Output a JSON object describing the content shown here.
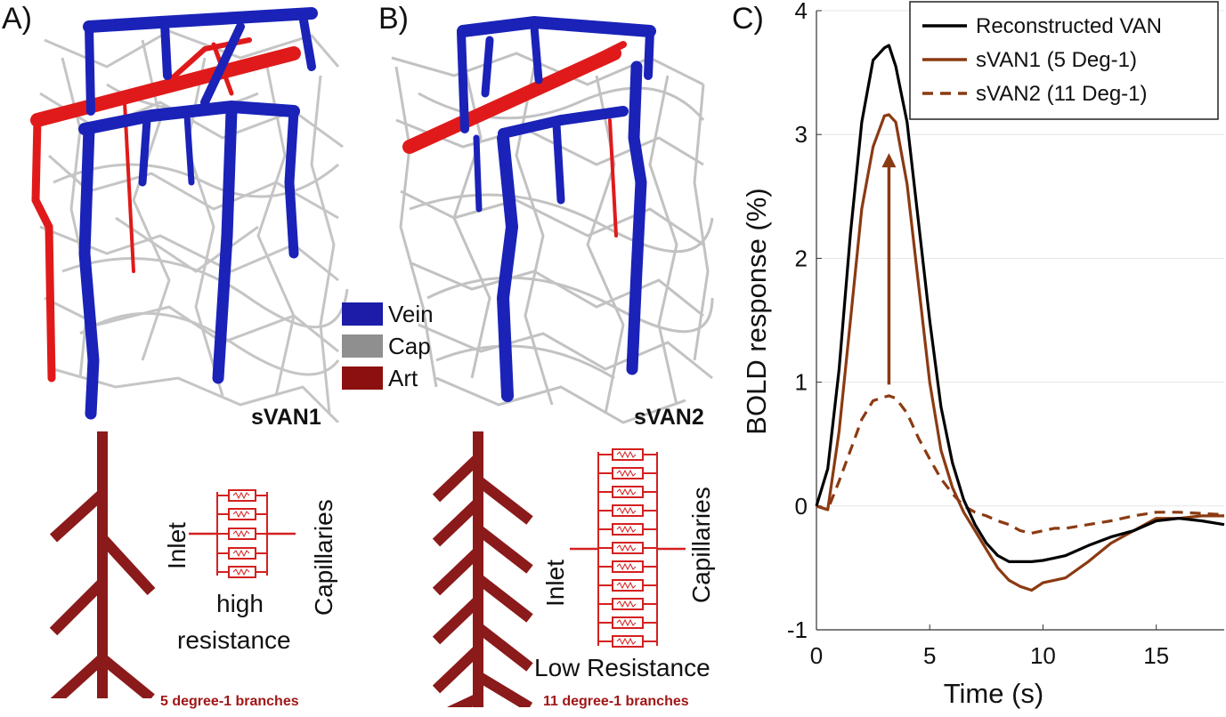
{
  "panels": {
    "a": {
      "letter": "A)",
      "network_label": "sVAN1",
      "inlet": "Inlet",
      "capillaries": "Capillaries",
      "resistance_line1": "high",
      "resistance_line2": "resistance",
      "branches": "5 degree-1 branches"
    },
    "b": {
      "letter": "B)",
      "network_label": "sVAN2",
      "inlet": "Inlet",
      "capillaries": "Capillaries",
      "resistance": "Low Resistance",
      "branches": "11 degree-1 branches"
    },
    "c": {
      "letter": "C)"
    }
  },
  "vessel_legend": [
    {
      "label": "Vein",
      "color": "#1c1ca8"
    },
    {
      "label": "Cap",
      "color": "#8f8f8f"
    },
    {
      "label": "Art",
      "color": "#8c1010"
    }
  ],
  "colors": {
    "vein": "#1a22b8",
    "artery": "#e01a1a",
    "capillary": "#c2c2c2",
    "tree": "#8b1a1a",
    "resistor": "#d42020"
  },
  "chart_data": {
    "type": "line",
    "xlabel": "Time (s)",
    "ylabel": "BOLD response (%)",
    "xlim": [
      0,
      18
    ],
    "ylim": [
      -1,
      4
    ],
    "xticks": [
      0,
      5,
      10,
      15
    ],
    "yticks": [
      -1,
      0,
      1,
      2,
      3,
      4
    ],
    "grid": "y",
    "legend_position": "top-right",
    "annotation": "arrow from sVAN2 peak up to sVAN1 peak at t = 3.2 s",
    "series": [
      {
        "name": "Reconstructed  VAN",
        "color": "#000000",
        "style": "solid",
        "x": [
          0,
          0.5,
          1,
          1.5,
          2,
          2.5,
          3,
          3.2,
          3.5,
          4,
          4.5,
          5,
          5.5,
          6,
          6.5,
          7,
          7.5,
          8,
          8.5,
          9,
          9.5,
          10,
          10.5,
          11,
          12,
          13,
          14,
          15,
          16,
          17,
          18
        ],
        "y": [
          0,
          0.3,
          1.1,
          2.2,
          3.1,
          3.6,
          3.7,
          3.72,
          3.55,
          3.1,
          2.3,
          1.5,
          0.8,
          0.35,
          0.05,
          -0.15,
          -0.3,
          -0.4,
          -0.45,
          -0.45,
          -0.45,
          -0.44,
          -0.42,
          -0.4,
          -0.32,
          -0.25,
          -0.2,
          -0.12,
          -0.1,
          -0.12,
          -0.15
        ]
      },
      {
        "name": "sVAN1 (5 Deg-1)",
        "color": "#8b3a12",
        "style": "solid",
        "x": [
          0,
          0.5,
          1,
          1.5,
          2,
          2.5,
          3,
          3.2,
          3.5,
          4,
          4.5,
          5,
          5.5,
          6,
          6.5,
          7,
          7.5,
          8,
          8.5,
          9,
          9.5,
          10,
          10.5,
          11,
          12,
          13,
          14,
          15,
          16,
          17,
          18
        ],
        "y": [
          0,
          -0.03,
          0.6,
          1.5,
          2.4,
          2.9,
          3.15,
          3.16,
          3.1,
          2.6,
          1.8,
          1.0,
          0.45,
          0.15,
          -0.05,
          -0.2,
          -0.35,
          -0.5,
          -0.6,
          -0.65,
          -0.68,
          -0.62,
          -0.6,
          -0.58,
          -0.45,
          -0.3,
          -0.2,
          -0.1,
          -0.1,
          -0.08,
          -0.08
        ]
      },
      {
        "name": "sVAN2 (11 Deg-1)",
        "color": "#8b3a12",
        "style": "dashed",
        "x": [
          0,
          0.5,
          1,
          1.5,
          2,
          2.5,
          3,
          3.2,
          3.5,
          4,
          4.5,
          5,
          5.5,
          6,
          6.5,
          7,
          7.5,
          8,
          8.5,
          9,
          9.5,
          10,
          10.5,
          11,
          12,
          13,
          14,
          15,
          16,
          17,
          18
        ],
        "y": [
          0,
          -0.03,
          0.2,
          0.45,
          0.7,
          0.85,
          0.88,
          0.89,
          0.87,
          0.75,
          0.55,
          0.38,
          0.22,
          0.1,
          0.0,
          -0.05,
          -0.08,
          -0.12,
          -0.15,
          -0.2,
          -0.22,
          -0.2,
          -0.18,
          -0.18,
          -0.15,
          -0.12,
          -0.08,
          -0.05,
          -0.05,
          -0.06,
          -0.07
        ]
      }
    ]
  }
}
